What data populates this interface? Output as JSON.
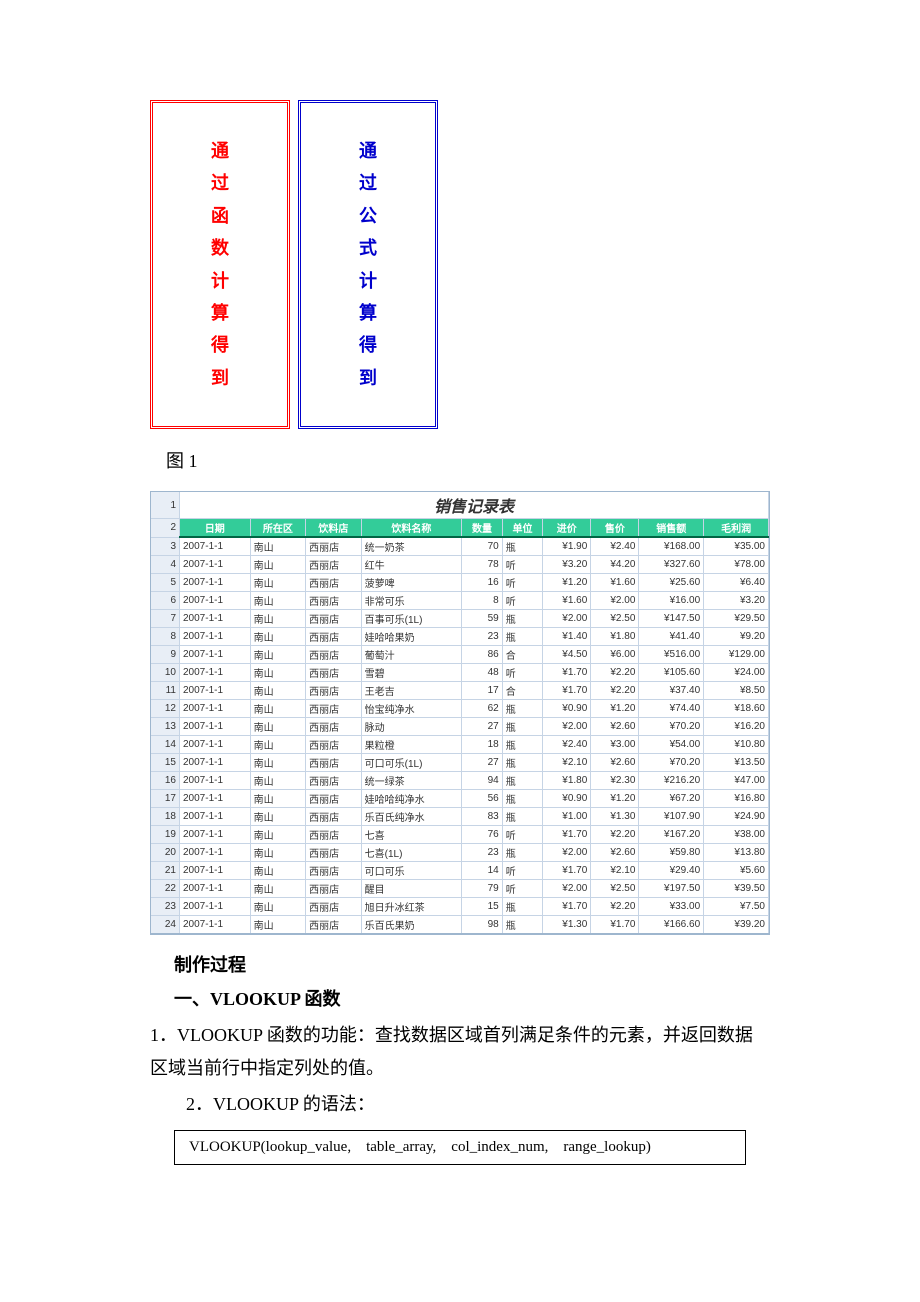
{
  "boxes": {
    "left_chars": [
      "通",
      "过",
      "函",
      "数",
      "计",
      "算",
      "得",
      "到"
    ],
    "right_chars": [
      "通",
      "过",
      "公",
      "式",
      "计",
      "算",
      "得",
      "到"
    ],
    "left_color": "#ff0000",
    "right_color": "#0000cc"
  },
  "figure_caption": "图 1",
  "sheet": {
    "title": "销售记录表",
    "columns": [
      "日期",
      "所在区",
      "饮料店",
      "饮料名称",
      "数量",
      "单位",
      "进价",
      "售价",
      "销售额",
      "毛利润"
    ],
    "header_bg": "#33cc99",
    "header_fg": "#ffffff",
    "grid_color": "#c6d4e5",
    "rowhead_bg": "#e8eef6",
    "start_row_num": 1,
    "rows": [
      [
        "2007-1-1",
        "南山",
        "西丽店",
        "统一奶茶",
        "70",
        "瓶",
        "¥1.90",
        "¥2.40",
        "¥168.00",
        "¥35.00"
      ],
      [
        "2007-1-1",
        "南山",
        "西丽店",
        "红牛",
        "78",
        "听",
        "¥3.20",
        "¥4.20",
        "¥327.60",
        "¥78.00"
      ],
      [
        "2007-1-1",
        "南山",
        "西丽店",
        "菠萝啤",
        "16",
        "听",
        "¥1.20",
        "¥1.60",
        "¥25.60",
        "¥6.40"
      ],
      [
        "2007-1-1",
        "南山",
        "西丽店",
        "非常可乐",
        "8",
        "听",
        "¥1.60",
        "¥2.00",
        "¥16.00",
        "¥3.20"
      ],
      [
        "2007-1-1",
        "南山",
        "西丽店",
        "百事可乐(1L)",
        "59",
        "瓶",
        "¥2.00",
        "¥2.50",
        "¥147.50",
        "¥29.50"
      ],
      [
        "2007-1-1",
        "南山",
        "西丽店",
        "娃哈哈果奶",
        "23",
        "瓶",
        "¥1.40",
        "¥1.80",
        "¥41.40",
        "¥9.20"
      ],
      [
        "2007-1-1",
        "南山",
        "西丽店",
        "葡萄汁",
        "86",
        "合",
        "¥4.50",
        "¥6.00",
        "¥516.00",
        "¥129.00"
      ],
      [
        "2007-1-1",
        "南山",
        "西丽店",
        "雪碧",
        "48",
        "听",
        "¥1.70",
        "¥2.20",
        "¥105.60",
        "¥24.00"
      ],
      [
        "2007-1-1",
        "南山",
        "西丽店",
        "王老吉",
        "17",
        "合",
        "¥1.70",
        "¥2.20",
        "¥37.40",
        "¥8.50"
      ],
      [
        "2007-1-1",
        "南山",
        "西丽店",
        "怡宝纯净水",
        "62",
        "瓶",
        "¥0.90",
        "¥1.20",
        "¥74.40",
        "¥18.60"
      ],
      [
        "2007-1-1",
        "南山",
        "西丽店",
        "脉动",
        "27",
        "瓶",
        "¥2.00",
        "¥2.60",
        "¥70.20",
        "¥16.20"
      ],
      [
        "2007-1-1",
        "南山",
        "西丽店",
        "果粒橙",
        "18",
        "瓶",
        "¥2.40",
        "¥3.00",
        "¥54.00",
        "¥10.80"
      ],
      [
        "2007-1-1",
        "南山",
        "西丽店",
        "可口可乐(1L)",
        "27",
        "瓶",
        "¥2.10",
        "¥2.60",
        "¥70.20",
        "¥13.50"
      ],
      [
        "2007-1-1",
        "南山",
        "西丽店",
        "统一绿茶",
        "94",
        "瓶",
        "¥1.80",
        "¥2.30",
        "¥216.20",
        "¥47.00"
      ],
      [
        "2007-1-1",
        "南山",
        "西丽店",
        "娃哈哈纯净水",
        "56",
        "瓶",
        "¥0.90",
        "¥1.20",
        "¥67.20",
        "¥16.80"
      ],
      [
        "2007-1-1",
        "南山",
        "西丽店",
        "乐百氏纯净水",
        "83",
        "瓶",
        "¥1.00",
        "¥1.30",
        "¥107.90",
        "¥24.90"
      ],
      [
        "2007-1-1",
        "南山",
        "西丽店",
        "七喜",
        "76",
        "听",
        "¥1.70",
        "¥2.20",
        "¥167.20",
        "¥38.00"
      ],
      [
        "2007-1-1",
        "南山",
        "西丽店",
        "七喜(1L)",
        "23",
        "瓶",
        "¥2.00",
        "¥2.60",
        "¥59.80",
        "¥13.80"
      ],
      [
        "2007-1-1",
        "南山",
        "西丽店",
        "可口可乐",
        "14",
        "听",
        "¥1.70",
        "¥2.10",
        "¥29.40",
        "¥5.60"
      ],
      [
        "2007-1-1",
        "南山",
        "西丽店",
        "醒目",
        "79",
        "听",
        "¥2.00",
        "¥2.50",
        "¥197.50",
        "¥39.50"
      ],
      [
        "2007-1-1",
        "南山",
        "西丽店",
        "旭日升冰红茶",
        "15",
        "瓶",
        "¥1.70",
        "¥2.20",
        "¥33.00",
        "¥7.50"
      ],
      [
        "2007-1-1",
        "南山",
        "西丽店",
        "乐百氏果奶",
        "98",
        "瓶",
        "¥1.30",
        "¥1.70",
        "¥166.60",
        "¥39.20"
      ]
    ]
  },
  "text": {
    "process_heading": "制作过程",
    "section1_heading": "一、VLOOKUP 函数",
    "para1": "1．VLOOKUP 函数的功能：查找数据区域首列满足条件的元素，并返回数据区域当前行中指定列处的值。",
    "para2": "2．VLOOKUP 的语法：",
    "syntax": "VLOOKUP(lookup_value, table_array, col_index_num, range_lookup)"
  }
}
